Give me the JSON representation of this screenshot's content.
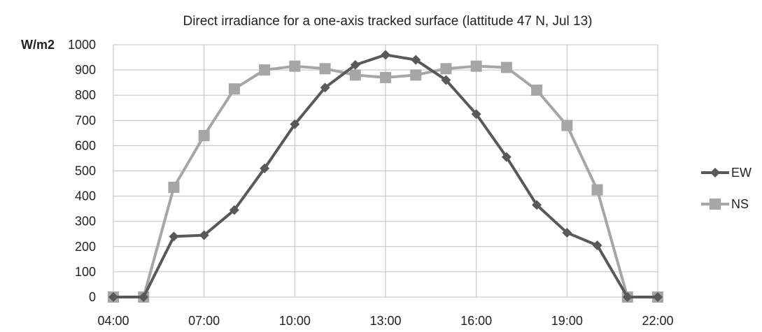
{
  "chart_data": {
    "type": "line",
    "title": "Direct irradiance for a one-axis tracked surface (lattitude 47 N, Jul 13)",
    "ylabel": "W/m2",
    "xlabel": "",
    "x": [
      "04:00",
      "05:00",
      "06:00",
      "07:00",
      "08:00",
      "09:00",
      "10:00",
      "11:00",
      "12:00",
      "13:00",
      "14:00",
      "15:00",
      "16:00",
      "17:00",
      "18:00",
      "19:00",
      "20:00",
      "21:00",
      "22:00"
    ],
    "x_tick_labels": [
      "04:00",
      "07:00",
      "10:00",
      "13:00",
      "16:00",
      "19:00",
      "22:00"
    ],
    "y_tick_labels": [
      "0",
      "100",
      "200",
      "300",
      "400",
      "500",
      "600",
      "700",
      "800",
      "900",
      "1000"
    ],
    "ylim": [
      0,
      1000
    ],
    "grid": true,
    "legend_position": "right",
    "series": [
      {
        "name": "EW",
        "color": "#595959",
        "marker": "diamond",
        "values": [
          0,
          0,
          240,
          245,
          345,
          510,
          685,
          830,
          920,
          960,
          940,
          860,
          725,
          555,
          365,
          255,
          205,
          0,
          0
        ]
      },
      {
        "name": "NS",
        "color": "#a6a6a6",
        "marker": "square",
        "values": [
          0,
          0,
          435,
          640,
          825,
          900,
          915,
          905,
          880,
          870,
          880,
          905,
          915,
          910,
          820,
          680,
          425,
          0,
          0
        ]
      }
    ]
  }
}
